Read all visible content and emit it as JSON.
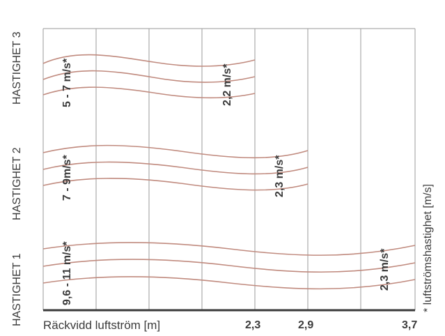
{
  "speeds": [
    {
      "title": "HASTIGHET 3",
      "inner_label": "5 - 7 m/s*",
      "outer_label": "2,2 m/s*"
    },
    {
      "title": "HASTIGHET 2",
      "inner_label": "7 - 9m/s*",
      "outer_label": "2,3 m/s*"
    },
    {
      "title": "HASTIGHET 1",
      "inner_label": "9,6 - 11 m/s*",
      "outer_label": "2,3 m/s*"
    }
  ],
  "axis": {
    "label": "Räckvidd luftström [m]",
    "ticks": [
      "2,3",
      "2,9",
      "3,7"
    ]
  },
  "side_note": "* luftströmshastighet [m/s]",
  "colors": {
    "curve": "#c08a7e",
    "grid": "#9a9a9a",
    "axis": "#3a3a3a",
    "text": "#3b3b3b"
  }
}
